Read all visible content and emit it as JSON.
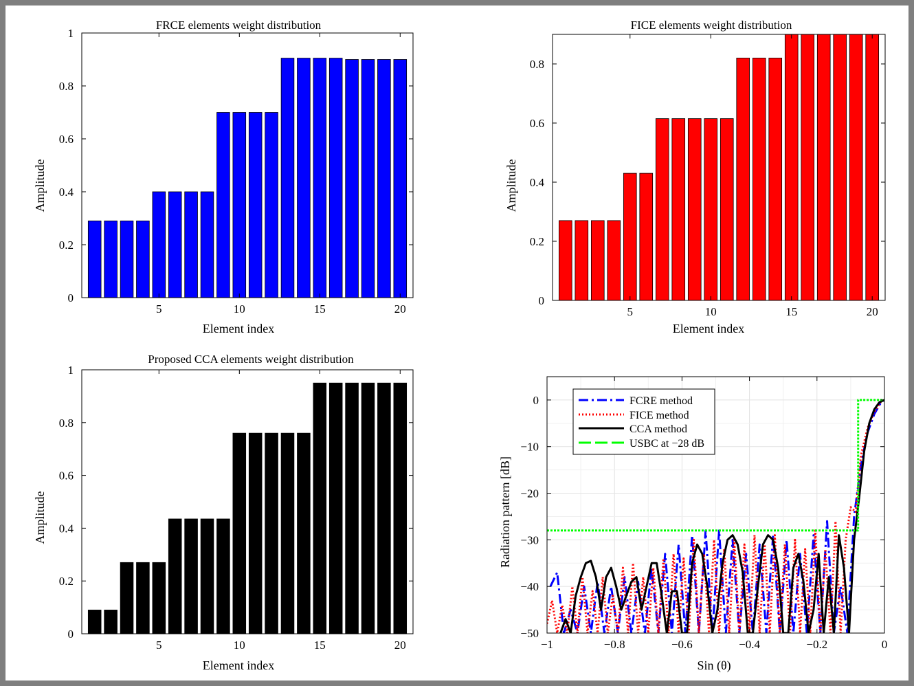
{
  "chart_data": [
    {
      "id": "frce",
      "type": "bar",
      "title": "FRCE elements weight distribution",
      "xlabel": "Element index",
      "ylabel": "Amplitude",
      "color": "#0000ff",
      "x": [
        1,
        2,
        3,
        4,
        5,
        6,
        7,
        8,
        9,
        10,
        11,
        12,
        13,
        14,
        15,
        16,
        17,
        18,
        19,
        20
      ],
      "values": [
        0.29,
        0.29,
        0.29,
        0.29,
        0.4,
        0.4,
        0.4,
        0.4,
        0.7,
        0.7,
        0.7,
        0.7,
        0.905,
        0.905,
        0.905,
        0.905,
        0.9,
        0.9,
        0.9,
        0.9
      ],
      "xlim": [
        0.2,
        20.8
      ],
      "ylim": [
        0,
        1
      ],
      "xticks": [
        5,
        10,
        15,
        20
      ],
      "yticks": [
        0,
        0.2,
        0.4,
        0.6,
        0.8,
        1
      ],
      "ytick_labels": [
        "0",
        "0.2",
        "0.4",
        "0.6",
        "0.8",
        "1"
      ],
      "grid": false
    },
    {
      "id": "fice",
      "type": "bar",
      "title": "FICE elements weight distribution",
      "xlabel": "Element index",
      "ylabel": "Amplitude",
      "color": "#ff0000",
      "x": [
        1,
        2,
        3,
        4,
        5,
        6,
        7,
        8,
        9,
        10,
        11,
        12,
        13,
        14,
        15,
        16,
        17,
        18,
        19,
        20
      ],
      "values": [
        0.27,
        0.27,
        0.27,
        0.27,
        0.43,
        0.43,
        0.615,
        0.615,
        0.615,
        0.615,
        0.615,
        0.82,
        0.82,
        0.82,
        0.9,
        0.9,
        0.9,
        0.9,
        0.9,
        0.9
      ],
      "xlim": [
        0.2,
        20.8
      ],
      "ylim": [
        0,
        0.9
      ],
      "xticks": [
        5,
        10,
        15,
        20
      ],
      "yticks": [
        0,
        0.2,
        0.4,
        0.6,
        0.8
      ],
      "ytick_labels": [
        "0",
        "0.2",
        "0.4",
        "0.6",
        "0.8"
      ],
      "grid": false
    },
    {
      "id": "cca",
      "type": "bar",
      "title": "Proposed CCA elements weight distribution",
      "xlabel": "Element index",
      "ylabel": "Amplitude",
      "color": "#000000",
      "x": [
        1,
        2,
        3,
        4,
        5,
        6,
        7,
        8,
        9,
        10,
        11,
        12,
        13,
        14,
        15,
        16,
        17,
        18,
        19,
        20
      ],
      "values": [
        0.09,
        0.09,
        0.27,
        0.27,
        0.27,
        0.435,
        0.435,
        0.435,
        0.435,
        0.76,
        0.76,
        0.76,
        0.76,
        0.76,
        0.95,
        0.95,
        0.95,
        0.95,
        0.95,
        0.95
      ],
      "xlim": [
        0.2,
        20.8
      ],
      "ylim": [
        0,
        1
      ],
      "xticks": [
        5,
        10,
        15,
        20
      ],
      "yticks": [
        0,
        0.2,
        0.4,
        0.6,
        0.8,
        1
      ],
      "ytick_labels": [
        "0",
        "0.2",
        "0.4",
        "0.6",
        "0.8",
        "1"
      ],
      "grid": false
    },
    {
      "id": "pattern",
      "type": "line",
      "title": "",
      "xlabel": "Sin (θ)",
      "ylabel": "Radiation pattern [dB]",
      "xlim": [
        -1,
        0
      ],
      "ylim": [
        -50,
        5
      ],
      "xticks": [
        -1,
        -0.8,
        -0.6,
        -0.4,
        -0.2,
        0
      ],
      "xtick_labels": [
        "−1",
        "−0.8",
        "−0.6",
        "−0.4",
        "−0.2",
        "0"
      ],
      "yticks": [
        -50,
        -40,
        -30,
        -20,
        -10,
        0
      ],
      "ytick_labels": [
        "−50",
        "−40",
        "−30",
        "−20",
        "−10",
        "0"
      ],
      "grid": true,
      "legend_position": "top-left",
      "series": [
        {
          "name": "FCRE method",
          "color": "#0000ff",
          "style": "dashdot",
          "x": [
            -0.99,
            -0.97,
            -0.95,
            -0.93,
            -0.91,
            -0.89,
            -0.87,
            -0.85,
            -0.83,
            -0.81,
            -0.79,
            -0.77,
            -0.75,
            -0.73,
            -0.71,
            -0.69,
            -0.67,
            -0.65,
            -0.63,
            -0.61,
            -0.59,
            -0.57,
            -0.55,
            -0.53,
            -0.51,
            -0.49,
            -0.47,
            -0.45,
            -0.43,
            -0.41,
            -0.39,
            -0.37,
            -0.35,
            -0.33,
            -0.31,
            -0.29,
            -0.27,
            -0.25,
            -0.23,
            -0.21,
            -0.19,
            -0.17,
            -0.15,
            -0.13,
            -0.11,
            -0.09,
            -0.07,
            -0.05,
            -0.03,
            -0.01,
            0
          ],
          "y": [
            -40,
            -37,
            -50,
            -45,
            -50,
            -40,
            -50,
            -39,
            -50,
            -40,
            -50,
            -38,
            -50,
            -39,
            -50,
            -36,
            -50,
            -33,
            -50,
            -31,
            -50,
            -29,
            -50,
            -28,
            -50,
            -28,
            -50,
            -30,
            -50,
            -33,
            -50,
            -31,
            -50,
            -29,
            -50,
            -30,
            -50,
            -33,
            -50,
            -29,
            -50,
            -26,
            -50,
            -40,
            -50,
            -25,
            -14,
            -7,
            -3,
            -0.5,
            0
          ]
        },
        {
          "name": "FICE method",
          "color": "#ff0000",
          "style": "dotted",
          "x": [
            -1,
            -0.985,
            -0.97,
            -0.955,
            -0.94,
            -0.925,
            -0.91,
            -0.895,
            -0.88,
            -0.865,
            -0.85,
            -0.835,
            -0.82,
            -0.805,
            -0.79,
            -0.775,
            -0.76,
            -0.745,
            -0.73,
            -0.715,
            -0.7,
            -0.685,
            -0.67,
            -0.655,
            -0.64,
            -0.625,
            -0.61,
            -0.595,
            -0.58,
            -0.565,
            -0.55,
            -0.535,
            -0.52,
            -0.505,
            -0.49,
            -0.475,
            -0.46,
            -0.445,
            -0.43,
            -0.415,
            -0.4,
            -0.385,
            -0.37,
            -0.355,
            -0.34,
            -0.325,
            -0.31,
            -0.295,
            -0.28,
            -0.265,
            -0.25,
            -0.235,
            -0.22,
            -0.205,
            -0.19,
            -0.175,
            -0.16,
            -0.145,
            -0.13,
            -0.115,
            -0.1,
            -0.085,
            -0.07,
            -0.05,
            -0.03,
            -0.01,
            0
          ],
          "y": [
            -48,
            -43,
            -50,
            -44,
            -50,
            -40,
            -50,
            -38,
            -50,
            -41,
            -50,
            -38,
            -50,
            -42,
            -50,
            -36,
            -50,
            -35,
            -50,
            -38,
            -50,
            -36,
            -50,
            -34,
            -50,
            -33,
            -50,
            -34,
            -50,
            -30,
            -50,
            -33,
            -50,
            -30,
            -50,
            -32,
            -50,
            -30,
            -50,
            -31,
            -50,
            -29,
            -50,
            -31,
            -50,
            -29,
            -50,
            -31,
            -50,
            -30,
            -50,
            -32,
            -50,
            -28,
            -50,
            -32,
            -50,
            -26,
            -50,
            -30,
            -23,
            -24,
            -12,
            -6,
            -2.5,
            -0.3,
            0
          ]
        },
        {
          "name": "CCA method",
          "color": "#000000",
          "style": "solid",
          "x": [
            -0.96,
            -0.945,
            -0.93,
            -0.915,
            -0.9,
            -0.885,
            -0.87,
            -0.855,
            -0.84,
            -0.825,
            -0.81,
            -0.795,
            -0.78,
            -0.765,
            -0.75,
            -0.735,
            -0.72,
            -0.705,
            -0.69,
            -0.675,
            -0.66,
            -0.645,
            -0.63,
            -0.615,
            -0.6,
            -0.585,
            -0.57,
            -0.555,
            -0.54,
            -0.525,
            -0.51,
            -0.495,
            -0.48,
            -0.465,
            -0.45,
            -0.435,
            -0.42,
            -0.405,
            -0.39,
            -0.375,
            -0.36,
            -0.345,
            -0.33,
            -0.315,
            -0.3,
            -0.285,
            -0.27,
            -0.255,
            -0.24,
            -0.225,
            -0.21,
            -0.195,
            -0.18,
            -0.165,
            -0.15,
            -0.135,
            -0.12,
            -0.105,
            -0.09,
            -0.075,
            -0.06,
            -0.045,
            -0.03,
            -0.015,
            0
          ],
          "y": [
            -50,
            -47,
            -50,
            -42,
            -38,
            -35,
            -34.5,
            -38,
            -45,
            -38,
            -36,
            -40,
            -45,
            -42,
            -39,
            -38,
            -45,
            -40,
            -35,
            -35,
            -42,
            -50,
            -41,
            -41,
            -50,
            -50,
            -35,
            -31,
            -33,
            -40,
            -50,
            -45,
            -35,
            -30,
            -29,
            -31,
            -37,
            -50,
            -50,
            -40,
            -31,
            -29,
            -30,
            -36,
            -50,
            -50,
            -36,
            -33,
            -39,
            -50,
            -45,
            -33,
            -50,
            -38,
            -50,
            -29,
            -36,
            -50,
            -30,
            -21,
            -11,
            -5,
            -2,
            -0.5,
            0
          ]
        },
        {
          "name": "USBC at −28 dB",
          "color": "#00ff00",
          "style": "dashed-green",
          "x": [
            -1,
            -0.078,
            -0.078,
            -0.06,
            0
          ],
          "y": [
            -28,
            -28,
            0,
            0,
            0
          ]
        }
      ]
    }
  ]
}
